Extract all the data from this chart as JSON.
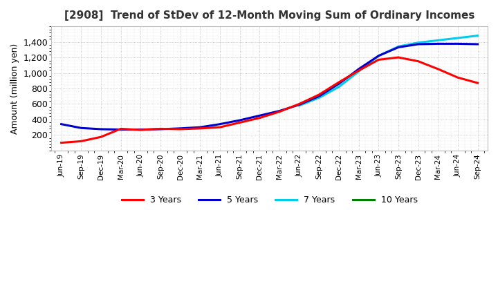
{
  "title": "[2908]  Trend of StDev of 12-Month Moving Sum of Ordinary Incomes",
  "ylabel": "Amount (million yen)",
  "ylim": [
    0,
    1600
  ],
  "yticks": [
    200,
    400,
    600,
    800,
    1000,
    1200,
    1400
  ],
  "background_color": "#ffffff",
  "grid_color": "#aaaaaa",
  "line_colors": {
    "3y": "#ff0000",
    "5y": "#0000cc",
    "7y": "#00ccee",
    "10y": "#008000"
  },
  "legend_labels": [
    "3 Years",
    "5 Years",
    "7 Years",
    "10 Years"
  ],
  "x_labels": [
    "Jun-19",
    "Sep-19",
    "Dec-19",
    "Mar-20",
    "Jun-20",
    "Sep-20",
    "Dec-20",
    "Mar-21",
    "Jun-21",
    "Sep-21",
    "Dec-21",
    "Mar-22",
    "Jun-22",
    "Sep-22",
    "Dec-22",
    "Mar-23",
    "Jun-23",
    "Sep-23",
    "Dec-23",
    "Mar-24",
    "Jun-24",
    "Sep-24"
  ],
  "data_3y": [
    100,
    120,
    175,
    280,
    265,
    280,
    275,
    285,
    300,
    360,
    420,
    500,
    600,
    720,
    880,
    1030,
    1170,
    1200,
    1150,
    1050,
    940,
    870
  ],
  "data_5y": [
    340,
    290,
    275,
    270,
    270,
    275,
    285,
    300,
    340,
    390,
    450,
    510,
    590,
    700,
    860,
    1050,
    1220,
    1330,
    1370,
    1375,
    1375,
    1370
  ],
  "data_7y": [
    null,
    null,
    null,
    null,
    null,
    null,
    null,
    null,
    null,
    null,
    null,
    null,
    580,
    680,
    820,
    1020,
    1220,
    1340,
    1390,
    1420,
    1450,
    1480
  ],
  "data_10y": [
    null,
    null,
    null,
    null,
    null,
    null,
    null,
    null,
    null,
    null,
    null,
    null,
    null,
    null,
    null,
    null,
    null,
    null,
    null,
    null,
    null,
    null
  ]
}
